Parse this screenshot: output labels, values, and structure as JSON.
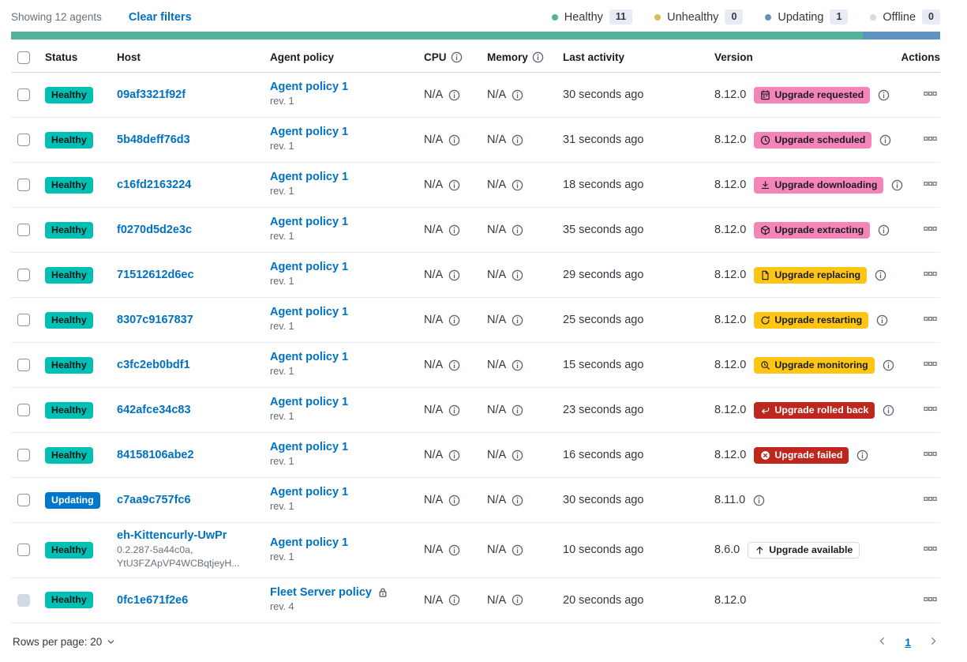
{
  "toolbar": {
    "showing_text": "Showing 12 agents",
    "clear_filters_label": "Clear filters",
    "legend": [
      {
        "label": "Healthy",
        "count": "11",
        "color": "#54b399"
      },
      {
        "label": "Unhealthy",
        "count": "0",
        "color": "#d6bf57"
      },
      {
        "label": "Updating",
        "count": "1",
        "color": "#6092c0"
      },
      {
        "label": "Offline",
        "count": "0",
        "color": "#d3dae6"
      }
    ]
  },
  "health_bar": {
    "segments": [
      {
        "status": "healthy",
        "color": "#54b399",
        "fraction": 0.9167
      },
      {
        "status": "updating",
        "color": "#6092c0",
        "fraction": 0.0833
      }
    ]
  },
  "table": {
    "headers": {
      "status": "Status",
      "host": "Host",
      "policy": "Agent policy",
      "cpu": "CPU",
      "memory": "Memory",
      "last_activity": "Last activity",
      "version": "Version",
      "actions": "Actions"
    },
    "rows": [
      {
        "status": "Healthy",
        "status_type": "healthy",
        "host": "09af3321f92f",
        "host_sub": null,
        "policy": "Agent policy 1",
        "policy_rev": "rev. 1",
        "policy_lock": false,
        "cpu": "N/A",
        "memory": "N/A",
        "last_activity": "30 seconds ago",
        "version": "8.12.0",
        "upgrade_badge": {
          "label": "Upgrade requested",
          "type": "pink",
          "icon": "calendar"
        },
        "version_info": true,
        "checkbox_disabled": false
      },
      {
        "status": "Healthy",
        "status_type": "healthy",
        "host": "5b48deff76d3",
        "host_sub": null,
        "policy": "Agent policy 1",
        "policy_rev": "rev. 1",
        "policy_lock": false,
        "cpu": "N/A",
        "memory": "N/A",
        "last_activity": "31 seconds ago",
        "version": "8.12.0",
        "upgrade_badge": {
          "label": "Upgrade scheduled",
          "type": "pink",
          "icon": "clock"
        },
        "version_info": true,
        "checkbox_disabled": false
      },
      {
        "status": "Healthy",
        "status_type": "healthy",
        "host": "c16fd2163224",
        "host_sub": null,
        "policy": "Agent policy 1",
        "policy_rev": "rev. 1",
        "policy_lock": false,
        "cpu": "N/A",
        "memory": "N/A",
        "last_activity": "18 seconds ago",
        "version": "8.12.0",
        "upgrade_badge": {
          "label": "Upgrade downloading",
          "type": "pink",
          "icon": "download"
        },
        "version_info": true,
        "checkbox_disabled": false
      },
      {
        "status": "Healthy",
        "status_type": "healthy",
        "host": "f0270d5d2e3c",
        "host_sub": null,
        "policy": "Agent policy 1",
        "policy_rev": "rev. 1",
        "policy_lock": false,
        "cpu": "N/A",
        "memory": "N/A",
        "last_activity": "35 seconds ago",
        "version": "8.12.0",
        "upgrade_badge": {
          "label": "Upgrade extracting",
          "type": "pink",
          "icon": "package"
        },
        "version_info": true,
        "checkbox_disabled": false
      },
      {
        "status": "Healthy",
        "status_type": "healthy",
        "host": "71512612d6ec",
        "host_sub": null,
        "policy": "Agent policy 1",
        "policy_rev": "rev. 1",
        "policy_lock": false,
        "cpu": "N/A",
        "memory": "N/A",
        "last_activity": "29 seconds ago",
        "version": "8.12.0",
        "upgrade_badge": {
          "label": "Upgrade replacing",
          "type": "warning",
          "icon": "document"
        },
        "version_info": true,
        "checkbox_disabled": false
      },
      {
        "status": "Healthy",
        "status_type": "healthy",
        "host": "8307c9167837",
        "host_sub": null,
        "policy": "Agent policy 1",
        "policy_rev": "rev. 1",
        "policy_lock": false,
        "cpu": "N/A",
        "memory": "N/A",
        "last_activity": "25 seconds ago",
        "version": "8.12.0",
        "upgrade_badge": {
          "label": "Upgrade restarting",
          "type": "warning",
          "icon": "refresh"
        },
        "version_info": true,
        "checkbox_disabled": false
      },
      {
        "status": "Healthy",
        "status_type": "healthy",
        "host": "c3fc2eb0bdf1",
        "host_sub": null,
        "policy": "Agent policy 1",
        "policy_rev": "rev. 1",
        "policy_lock": false,
        "cpu": "N/A",
        "memory": "N/A",
        "last_activity": "15 seconds ago",
        "version": "8.12.0",
        "upgrade_badge": {
          "label": "Upgrade monitoring",
          "type": "warning",
          "icon": "inspect"
        },
        "version_info": true,
        "checkbox_disabled": false
      },
      {
        "status": "Healthy",
        "status_type": "healthy",
        "host": "642afce34c83",
        "host_sub": null,
        "policy": "Agent policy 1",
        "policy_rev": "rev. 1",
        "policy_lock": false,
        "cpu": "N/A",
        "memory": "N/A",
        "last_activity": "23 seconds ago",
        "version": "8.12.0",
        "upgrade_badge": {
          "label": "Upgrade rolled back",
          "type": "danger",
          "icon": "return"
        },
        "version_info": true,
        "checkbox_disabled": false
      },
      {
        "status": "Healthy",
        "status_type": "healthy",
        "host": "84158106abe2",
        "host_sub": null,
        "policy": "Agent policy 1",
        "policy_rev": "rev. 1",
        "policy_lock": false,
        "cpu": "N/A",
        "memory": "N/A",
        "last_activity": "16 seconds ago",
        "version": "8.12.0",
        "upgrade_badge": {
          "label": "Upgrade failed",
          "type": "danger",
          "icon": "cross"
        },
        "version_info": true,
        "checkbox_disabled": false
      },
      {
        "status": "Updating",
        "status_type": "updating",
        "host": "c7aa9c757fc6",
        "host_sub": null,
        "policy": "Agent policy 1",
        "policy_rev": "rev. 1",
        "policy_lock": false,
        "cpu": "N/A",
        "memory": "N/A",
        "last_activity": "30 seconds ago",
        "version": "8.11.0",
        "upgrade_badge": null,
        "version_info": true,
        "checkbox_disabled": false
      },
      {
        "status": "Healthy",
        "status_type": "healthy",
        "host": "eh-Kittencurly-UwPr",
        "host_sub": [
          "0.2.287-5a44c0a,",
          "YtU3FZApVP4WCBqtjeyH..."
        ],
        "policy": "Agent policy 1",
        "policy_rev": "rev. 1",
        "policy_lock": false,
        "cpu": "N/A",
        "memory": "N/A",
        "last_activity": "10 seconds ago",
        "version": "8.6.0",
        "upgrade_badge": {
          "label": "Upgrade available",
          "type": "hollow",
          "icon": "arrow-up"
        },
        "version_info": false,
        "checkbox_disabled": false
      },
      {
        "status": "Healthy",
        "status_type": "healthy",
        "host": "0fc1e671f2e6",
        "host_sub": null,
        "policy": "Fleet Server policy",
        "policy_rev": "rev. 4",
        "policy_lock": true,
        "cpu": "N/A",
        "memory": "N/A",
        "last_activity": "20 seconds ago",
        "version": "8.12.0",
        "upgrade_badge": null,
        "version_info": false,
        "checkbox_disabled": true
      }
    ]
  },
  "footer": {
    "rows_per_page_label": "Rows per page: 20",
    "current_page": "1"
  },
  "colors": {
    "healthy_badge": "#00bfb3",
    "updating_badge": "#0077cc",
    "upgrade_pink": "#f584b9",
    "upgrade_warning": "#fec514",
    "upgrade_danger": "#bd271e",
    "link": "#0071c2"
  }
}
